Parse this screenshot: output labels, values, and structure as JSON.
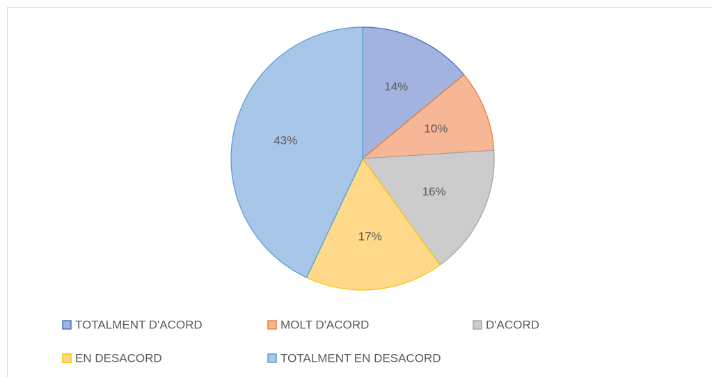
{
  "chart_data": {
    "type": "pie",
    "categories": [
      "TOTALMENT D'ACORD",
      "MOLT D'ACORD",
      "D'ACORD",
      "EN DESACORD",
      "TOTALMENT EN DESACORD"
    ],
    "values": [
      14,
      10,
      16,
      17,
      43
    ],
    "value_labels": [
      "14%",
      "10%",
      "16%",
      "17%",
      "43%"
    ],
    "colors": [
      "#a3b3e0",
      "#f7b797",
      "#cccccc",
      "#ffd98a",
      "#a8c6e8"
    ],
    "edge_colors": [
      "#4472c4",
      "#ed7d31",
      "#a5a5a5",
      "#ffc000",
      "#5b9bd5"
    ],
    "legend": "bottom"
  }
}
